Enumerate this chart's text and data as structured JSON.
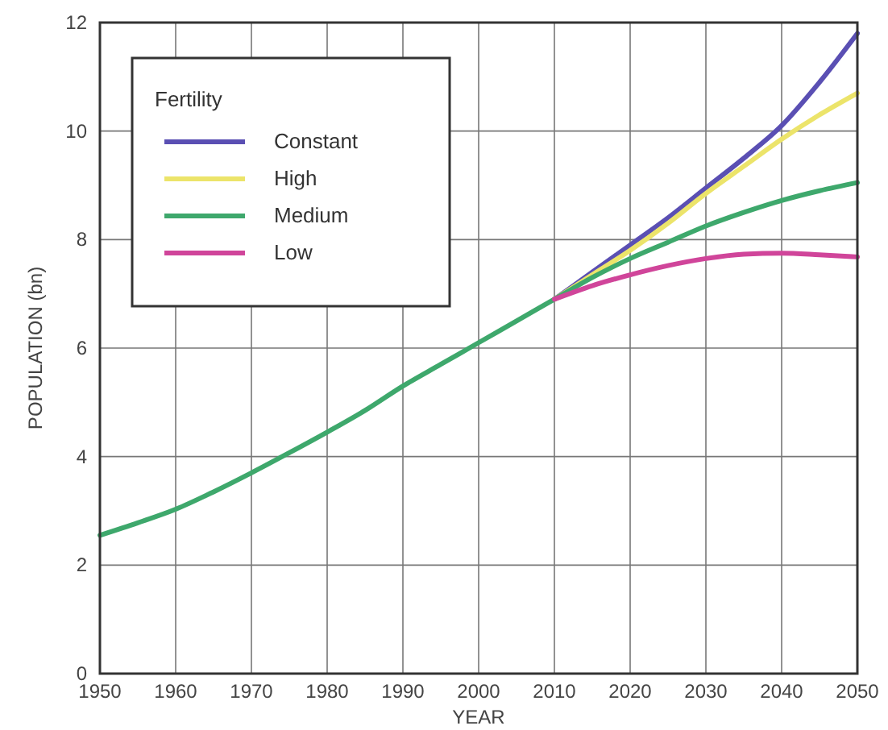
{
  "chart_data": {
    "type": "line",
    "xlabel": "YEAR",
    "ylabel": "POPULATION (bn)",
    "legend_title": "Fertility",
    "legend": "top left",
    "grid": true,
    "marker": "none",
    "line_style": "solid",
    "xlim": [
      1950,
      2050
    ],
    "xticks": [
      1950,
      1960,
      1970,
      1980,
      1990,
      2000,
      2010,
      2020,
      2030,
      2040,
      2050
    ],
    "ylim": [
      0,
      12
    ],
    "yticks": [
      0,
      2,
      4,
      6,
      8,
      10,
      12
    ],
    "series": [
      {
        "name": "Constant",
        "color": "#5a4fb3",
        "x": [
          2010,
          2015,
          2020,
          2025,
          2030,
          2035,
          2040,
          2045,
          2050
        ],
        "values": [
          6.9,
          7.4,
          7.9,
          8.4,
          8.95,
          9.5,
          10.1,
          10.9,
          11.8
        ]
      },
      {
        "name": "High",
        "color": "#ece46a",
        "x": [
          2010,
          2015,
          2020,
          2025,
          2030,
          2035,
          2040,
          2045,
          2050
        ],
        "values": [
          6.9,
          7.35,
          7.8,
          8.3,
          8.85,
          9.35,
          9.85,
          10.3,
          10.7
        ]
      },
      {
        "name": "Medium",
        "color": "#3ea86c",
        "x": [
          1950,
          1955,
          1960,
          1965,
          1970,
          1975,
          1980,
          1985,
          1990,
          1995,
          2000,
          2005,
          2010,
          2015,
          2020,
          2025,
          2030,
          2035,
          2040,
          2045,
          2050
        ],
        "values": [
          2.55,
          2.78,
          3.03,
          3.35,
          3.7,
          4.07,
          4.45,
          4.85,
          5.3,
          5.7,
          6.1,
          6.5,
          6.9,
          7.3,
          7.65,
          7.95,
          8.25,
          8.5,
          8.72,
          8.9,
          9.05
        ]
      },
      {
        "name": "Low",
        "color": "#d0459a",
        "x": [
          2010,
          2015,
          2020,
          2025,
          2030,
          2035,
          2040,
          2045,
          2050
        ],
        "values": [
          6.9,
          7.15,
          7.35,
          7.52,
          7.65,
          7.73,
          7.75,
          7.72,
          7.68
        ]
      }
    ]
  }
}
